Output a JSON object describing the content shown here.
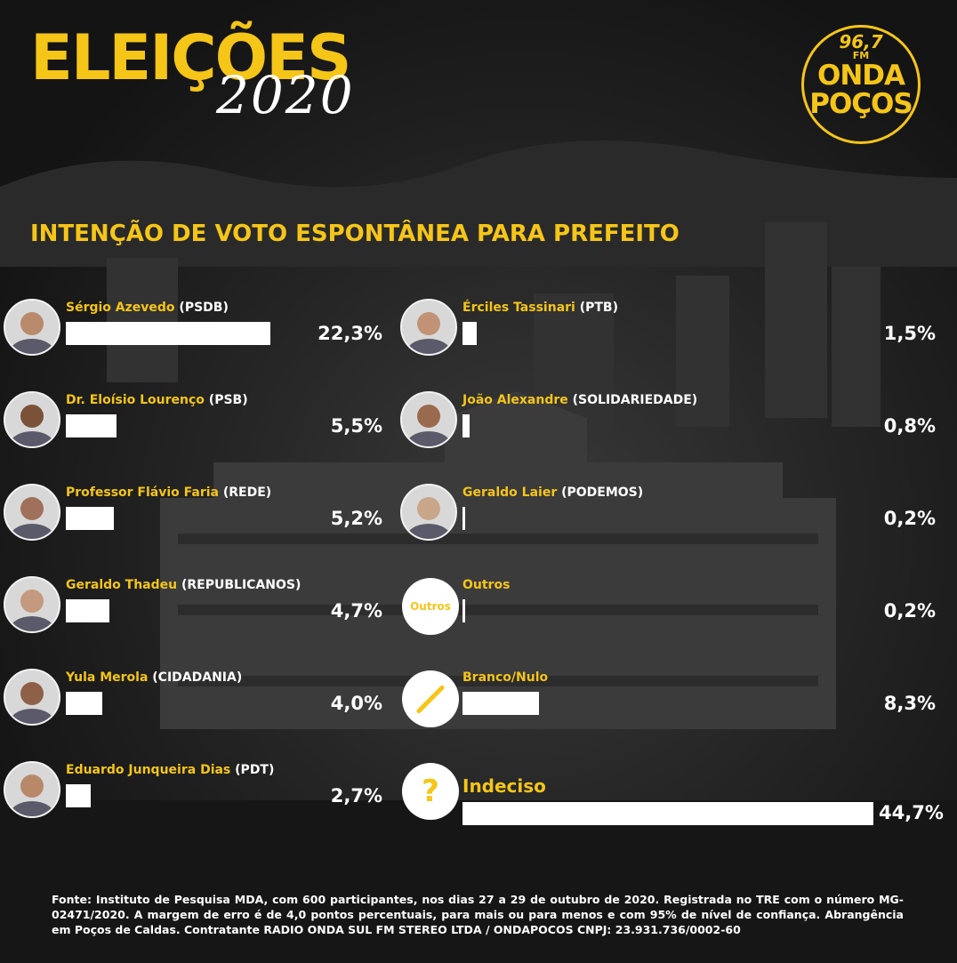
{
  "header": {
    "title": "ELEIÇÕES",
    "year": "2020",
    "logo": {
      "frequency": "96,7",
      "band": "FM",
      "line1": "ONDA",
      "line2": "POÇOS",
      "color": "#f5c518"
    }
  },
  "subtitle": "INTENÇÃO DE VOTO ESPONTÂNEA PARA PREFEITO",
  "chart_data": {
    "type": "bar",
    "title": "INTENÇÃO DE VOTO ESPONTÂNEA PARA PREFEITO",
    "unit": "%",
    "bar_color": "#ffffff",
    "accent_color": "#f5c518",
    "columns": [
      [
        {
          "name": "Sérgio Azevedo",
          "party": "(PSDB)",
          "value": 22.3,
          "label": "22,3%",
          "icon": "photo"
        },
        {
          "name": "Dr. Eloísio Lourenço",
          "party": "(PSB)",
          "value": 5.5,
          "label": "5,5%",
          "icon": "photo"
        },
        {
          "name": "Professor Flávio Faria",
          "party": "(REDE)",
          "value": 5.2,
          "label": "5,2%",
          "icon": "photo"
        },
        {
          "name": "Geraldo Thadeu",
          "party": "(REPUBLICANOS)",
          "value": 4.7,
          "label": "4,7%",
          "icon": "photo"
        },
        {
          "name": "Yula Merola",
          "party": "(CIDADANIA)",
          "value": 4.0,
          "label": "4,0%",
          "icon": "photo"
        },
        {
          "name": "Eduardo Junqueira Dias",
          "party": "(PDT)",
          "value": 2.7,
          "label": "2,7%",
          "icon": "photo"
        }
      ],
      [
        {
          "name": "Érciles Tassinari",
          "party": "(PTB)",
          "value": 1.5,
          "label": "1,5%",
          "icon": "photo"
        },
        {
          "name": "João Alexandre",
          "party": "(SOLIDARIEDADE)",
          "value": 0.8,
          "label": "0,8%",
          "icon": "photo"
        },
        {
          "name": "Geraldo Laier",
          "party": "(PODEMOS)",
          "value": 0.2,
          "label": "0,2%",
          "icon": "photo"
        },
        {
          "name": "Outros",
          "party": "",
          "value": 0.2,
          "label": "0,2%",
          "icon": "outros",
          "icon_text": "Outros"
        },
        {
          "name": "Branco/Nulo",
          "party": "",
          "value": 8.3,
          "label": "8,3%",
          "icon": "slash"
        },
        {
          "name": "Indeciso",
          "party": "",
          "value": 44.7,
          "label": "44,7%",
          "icon": "question",
          "icon_text": "?"
        }
      ]
    ]
  },
  "footer": "Fonte: Instituto de Pesquisa MDA, com 600 participantes, nos dias 27 a 29 de outubro de 2020. Registrada no TRE com o número MG-02471/2020. A margem de erro é de 4,0 pontos percentuais, para mais ou para menos e com 95% de nível de confiança. Abrangência em Poços de Caldas. Contratante RADIO ONDA SUL FM STEREO LTDA / ONDAPOCOS CNPJ: 23.931.736/0002-60"
}
